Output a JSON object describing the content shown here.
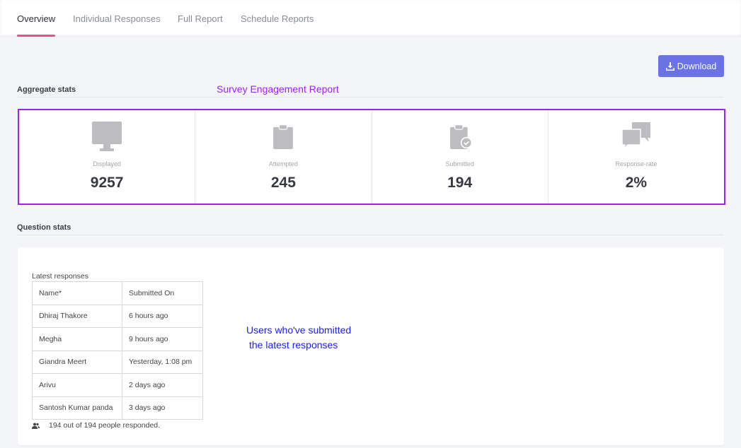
{
  "tabs": [
    {
      "label": "Overview"
    },
    {
      "label": "Individual Responses"
    },
    {
      "label": "Full Report"
    },
    {
      "label": "Schedule Reports"
    }
  ],
  "download_label": "Download",
  "aggregate_title": "Aggregate stats",
  "annotation_report": "Survey Engagement Report",
  "stats": [
    {
      "icon": "monitor-icon",
      "label": "Displayed",
      "value": "9257"
    },
    {
      "icon": "clipboard-icon",
      "label": "Attempted",
      "value": "245"
    },
    {
      "icon": "clipboard-check-icon",
      "label": "Submitted",
      "value": "194"
    },
    {
      "icon": "chat-bubbles-icon",
      "label": "Response-rate",
      "value": "2%"
    }
  ],
  "question_title": "Question stats",
  "latest": {
    "title": "Latest responses",
    "headers": [
      "Name*",
      "Submitted On"
    ],
    "rows": [
      [
        "Dhiraj Thakore",
        "6 hours ago"
      ],
      [
        "Megha",
        "9 hours ago"
      ],
      [
        "Giandra Meert",
        "Yesterday, 1:08 pm"
      ],
      [
        "Arivu",
        "2 days ago"
      ],
      [
        "Santosh Kumar panda",
        "3 days ago"
      ]
    ],
    "footer": "194 out of 194 people responded."
  },
  "annotation_users_1": "Users who've submitted",
  "annotation_users_2": "the latest responses"
}
